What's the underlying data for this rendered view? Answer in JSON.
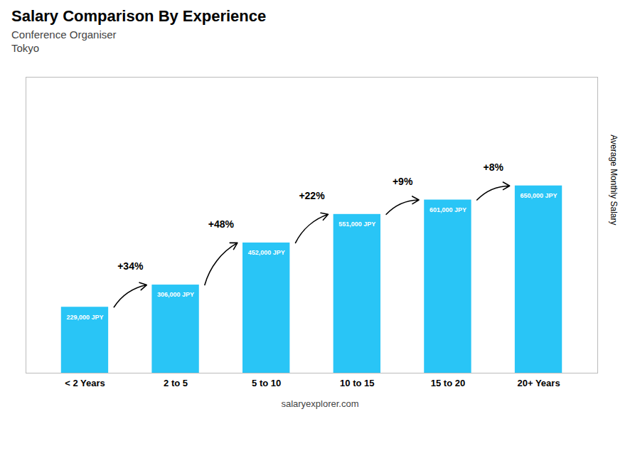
{
  "chart_data": {
    "type": "bar",
    "title": "Salary Comparison By Experience",
    "subtitle": [
      "Conference Organiser",
      "Tokyo"
    ],
    "ylabel": "Average Monthly Salary",
    "caption": "salaryexplorer.com",
    "categories": [
      "< 2 Years",
      "2 to 5",
      "5 to 10",
      "10 to 15",
      "15 to 20",
      "20+ Years"
    ],
    "values": [
      229000,
      306000,
      452000,
      551000,
      601000,
      650000
    ],
    "value_labels": [
      "229,000 JPY",
      "306,000 JPY",
      "452,000 JPY",
      "551,000 JPY",
      "601,000 JPY",
      "650,000 JPY"
    ],
    "data_labels": true,
    "color": "#29c5f6",
    "ylim": [
      0,
      1027000
    ],
    "tick_labels": "x",
    "annotations": [
      {
        "text": "+34%",
        "from": "< 2 Years",
        "to": "2 to 5"
      },
      {
        "text": "+48%",
        "from": "2 to 5",
        "to": "5 to 10"
      },
      {
        "text": "+22%",
        "from": "5 to 10",
        "to": "10 to 15"
      },
      {
        "text": "+9%",
        "from": "10 to 15",
        "to": "15 to 20"
      },
      {
        "text": "+8%",
        "from": "15 to 20",
        "to": "20+ Years"
      }
    ]
  }
}
